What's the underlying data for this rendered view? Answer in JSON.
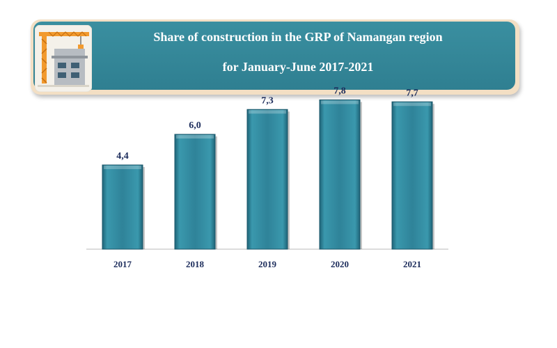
{
  "header": {
    "title_line1": "Share of construction in the GRP of Namangan region",
    "title_line2": "for January-June 2017-2021",
    "icon": "construction-crane-building-icon"
  },
  "colors": {
    "banner": "#2f7f91",
    "bar": "#2f8399",
    "text": "#1d2d5c"
  },
  "chart_data": {
    "type": "bar",
    "title": "Share of construction in the GRP of Namangan region for January-June 2017-2021",
    "categories": [
      "2017",
      "2018",
      "2019",
      "2020",
      "2021"
    ],
    "values": [
      4.4,
      6.0,
      7.3,
      7.8,
      7.7
    ],
    "value_labels": [
      "4,4",
      "6,0",
      "7,3",
      "7,8",
      "7,7"
    ],
    "xlabel": "",
    "ylabel": "",
    "ylim": [
      0,
      8
    ],
    "grid": false,
    "legend": "none"
  }
}
